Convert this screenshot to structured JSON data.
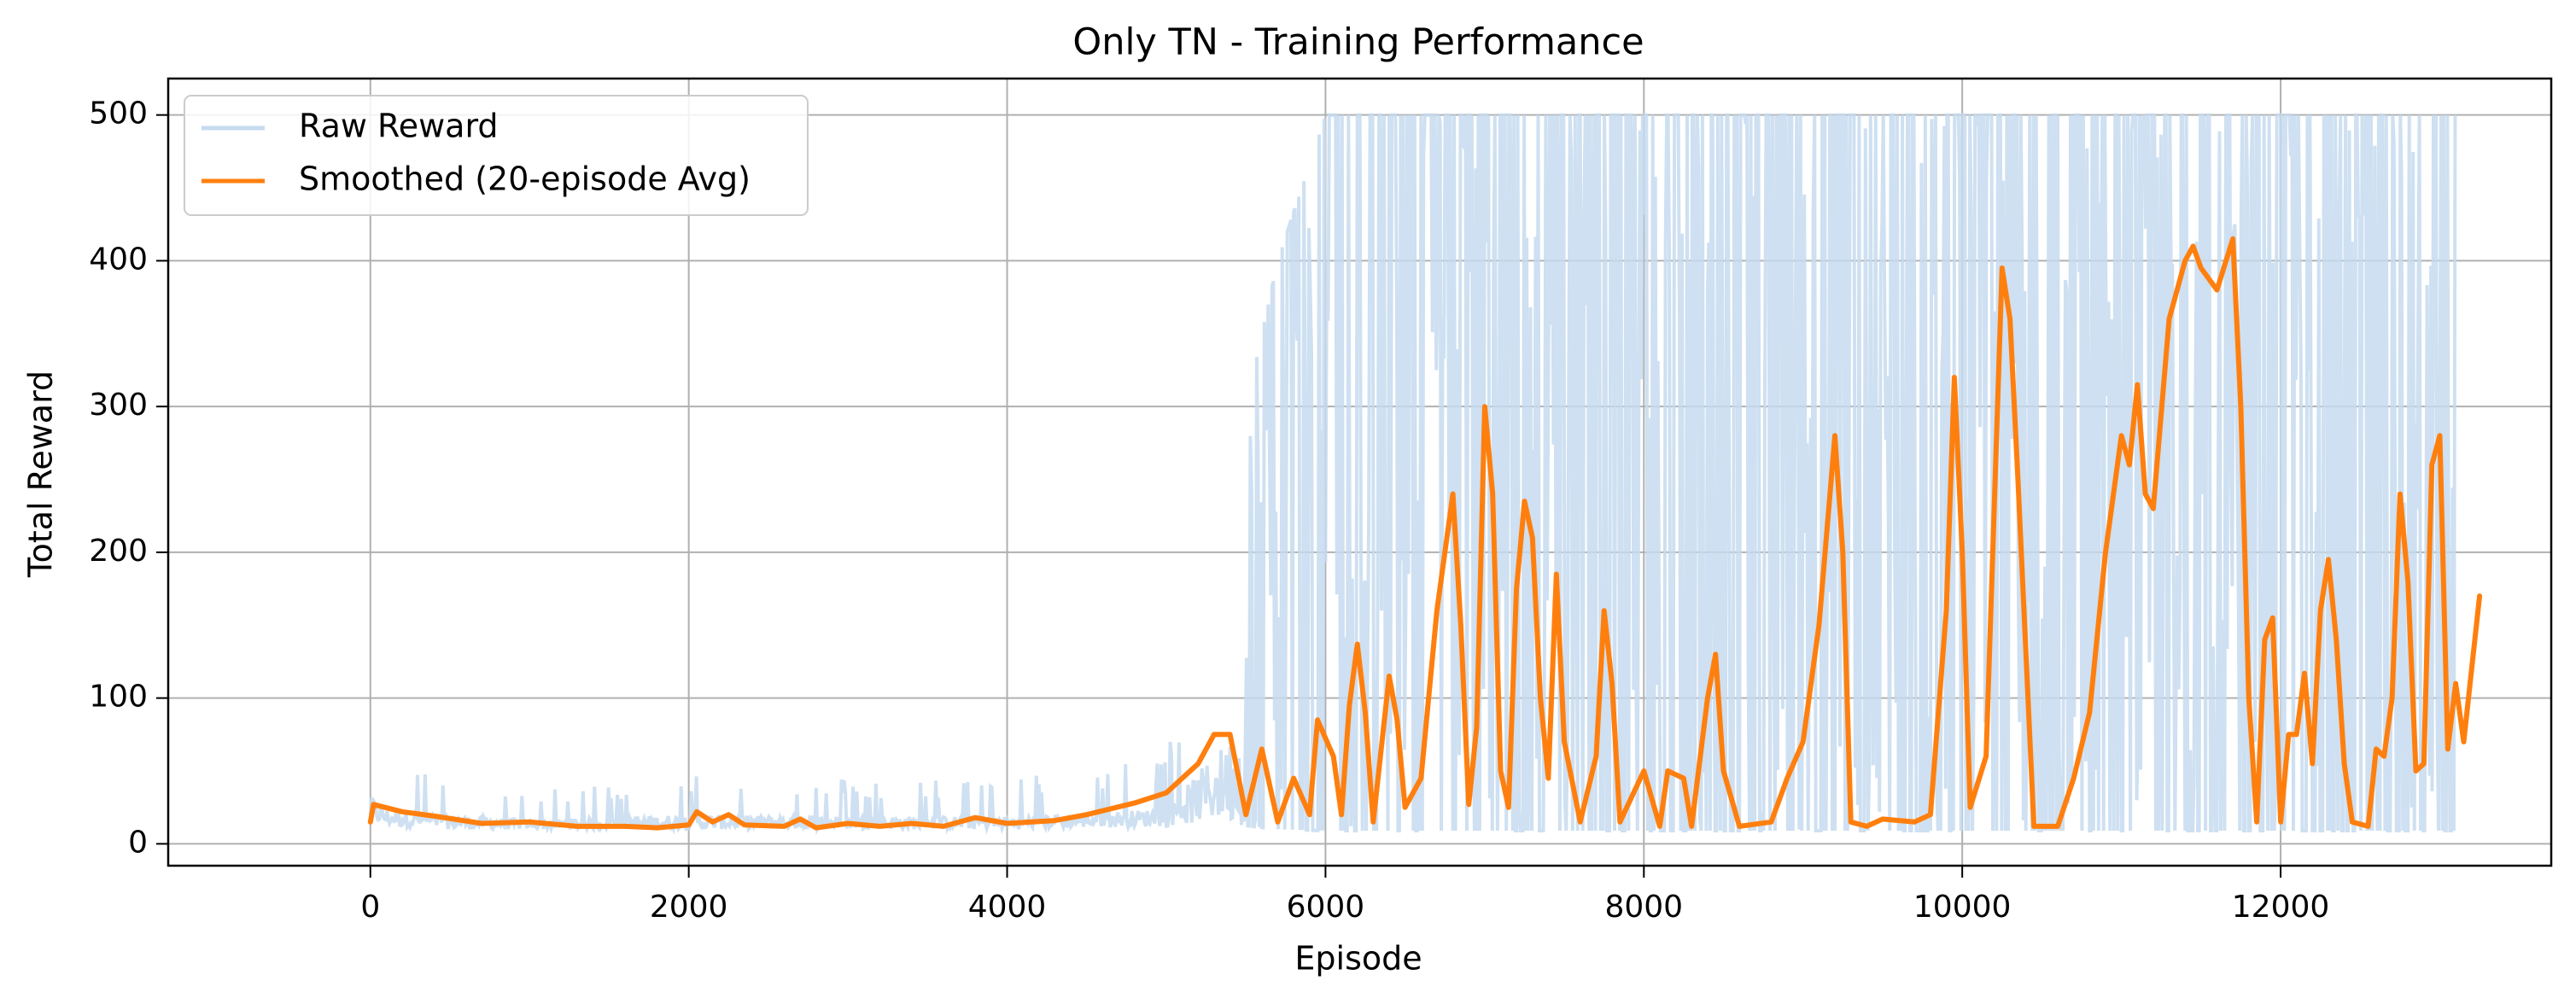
{
  "chart_data": {
    "type": "line",
    "title": "Only TN - Training Performance",
    "xlabel": "Episode",
    "ylabel": "Total Reward",
    "xlim": [
      -1270,
      13700
    ],
    "ylim": [
      -15,
      525
    ],
    "xticks": [
      0,
      2000,
      4000,
      6000,
      8000,
      10000,
      12000
    ],
    "yticks": [
      0,
      100,
      200,
      300,
      400,
      500
    ],
    "grid": true,
    "legend_position": "top-left",
    "series": [
      {
        "name": "Raw Reward",
        "color": "#c6dbef",
        "noise_envelope": [
          [
            0,
            15,
            85
          ],
          [
            100,
            12,
            60
          ],
          [
            500,
            10,
            50
          ],
          [
            1000,
            10,
            35
          ],
          [
            2000,
            10,
            50
          ],
          [
            3000,
            10,
            45
          ],
          [
            4000,
            10,
            45
          ],
          [
            5000,
            12,
            60
          ],
          [
            5300,
            15,
            200
          ],
          [
            5700,
            10,
            400
          ],
          [
            6000,
            9,
            500
          ],
          [
            7000,
            9,
            500
          ],
          [
            8000,
            9,
            500
          ],
          [
            9000,
            9,
            500
          ],
          [
            10000,
            9,
            500
          ],
          [
            11000,
            9,
            500
          ],
          [
            12000,
            9,
            500
          ],
          [
            13100,
            9,
            500
          ]
        ]
      },
      {
        "name": "Smoothed (20-episode Avg)",
        "color": "#ff7f0e",
        "points": [
          [
            0,
            15
          ],
          [
            20,
            27
          ],
          [
            200,
            22
          ],
          [
            400,
            19
          ],
          [
            700,
            14
          ],
          [
            1000,
            15
          ],
          [
            1300,
            12
          ],
          [
            1600,
            12
          ],
          [
            1800,
            11
          ],
          [
            2000,
            13
          ],
          [
            2050,
            22
          ],
          [
            2150,
            15
          ],
          [
            2250,
            20
          ],
          [
            2350,
            13
          ],
          [
            2600,
            12
          ],
          [
            2700,
            17
          ],
          [
            2800,
            11
          ],
          [
            3000,
            14
          ],
          [
            3200,
            12
          ],
          [
            3400,
            14
          ],
          [
            3600,
            12
          ],
          [
            3800,
            18
          ],
          [
            4000,
            14
          ],
          [
            4300,
            16
          ],
          [
            4500,
            20
          ],
          [
            4800,
            28
          ],
          [
            5000,
            35
          ],
          [
            5200,
            55
          ],
          [
            5300,
            75
          ],
          [
            5400,
            75
          ],
          [
            5500,
            20
          ],
          [
            5600,
            65
          ],
          [
            5700,
            15
          ],
          [
            5800,
            45
          ],
          [
            5900,
            20
          ],
          [
            5950,
            85
          ],
          [
            6050,
            60
          ],
          [
            6100,
            20
          ],
          [
            6150,
            95
          ],
          [
            6200,
            137
          ],
          [
            6250,
            90
          ],
          [
            6300,
            15
          ],
          [
            6400,
            115
          ],
          [
            6450,
            85
          ],
          [
            6500,
            25
          ],
          [
            6600,
            45
          ],
          [
            6700,
            160
          ],
          [
            6800,
            240
          ],
          [
            6850,
            150
          ],
          [
            6900,
            27
          ],
          [
            6950,
            80
          ],
          [
            7000,
            300
          ],
          [
            7050,
            240
          ],
          [
            7100,
            50
          ],
          [
            7150,
            25
          ],
          [
            7200,
            175
          ],
          [
            7250,
            235
          ],
          [
            7300,
            210
          ],
          [
            7350,
            100
          ],
          [
            7400,
            45
          ],
          [
            7450,
            185
          ],
          [
            7500,
            70
          ],
          [
            7600,
            15
          ],
          [
            7700,
            60
          ],
          [
            7750,
            160
          ],
          [
            7800,
            110
          ],
          [
            7850,
            15
          ],
          [
            8000,
            50
          ],
          [
            8100,
            12
          ],
          [
            8150,
            50
          ],
          [
            8250,
            45
          ],
          [
            8300,
            12
          ],
          [
            8400,
            100
          ],
          [
            8450,
            130
          ],
          [
            8500,
            50
          ],
          [
            8600,
            12
          ],
          [
            8800,
            15
          ],
          [
            8900,
            45
          ],
          [
            9000,
            70
          ],
          [
            9100,
            150
          ],
          [
            9200,
            280
          ],
          [
            9250,
            200
          ],
          [
            9300,
            15
          ],
          [
            9400,
            12
          ],
          [
            9500,
            17
          ],
          [
            9700,
            15
          ],
          [
            9800,
            20
          ],
          [
            9900,
            160
          ],
          [
            9950,
            320
          ],
          [
            10000,
            200
          ],
          [
            10050,
            25
          ],
          [
            10150,
            60
          ],
          [
            10250,
            395
          ],
          [
            10300,
            360
          ],
          [
            10350,
            250
          ],
          [
            10450,
            12
          ],
          [
            10600,
            12
          ],
          [
            10700,
            45
          ],
          [
            10800,
            90
          ],
          [
            10900,
            200
          ],
          [
            11000,
            280
          ],
          [
            11050,
            260
          ],
          [
            11100,
            315
          ],
          [
            11150,
            240
          ],
          [
            11200,
            230
          ],
          [
            11300,
            360
          ],
          [
            11400,
            400
          ],
          [
            11450,
            410
          ],
          [
            11500,
            395
          ],
          [
            11600,
            380
          ],
          [
            11700,
            415
          ],
          [
            11750,
            300
          ],
          [
            11800,
            100
          ],
          [
            11850,
            15
          ],
          [
            11900,
            140
          ],
          [
            11950,
            155
          ],
          [
            12000,
            15
          ],
          [
            12050,
            75
          ],
          [
            12100,
            75
          ],
          [
            12150,
            117
          ],
          [
            12200,
            55
          ],
          [
            12250,
            160
          ],
          [
            12300,
            195
          ],
          [
            12350,
            140
          ],
          [
            12400,
            55
          ],
          [
            12450,
            15
          ],
          [
            12550,
            12
          ],
          [
            12600,
            65
          ],
          [
            12650,
            60
          ],
          [
            12700,
            100
          ],
          [
            12750,
            240
          ],
          [
            12800,
            180
          ],
          [
            12850,
            50
          ],
          [
            12900,
            55
          ],
          [
            12950,
            260
          ],
          [
            13000,
            280
          ],
          [
            13050,
            65
          ],
          [
            13100,
            110
          ],
          [
            13150,
            70
          ],
          [
            13200,
            120
          ],
          [
            13250,
            170
          ]
        ]
      }
    ]
  }
}
